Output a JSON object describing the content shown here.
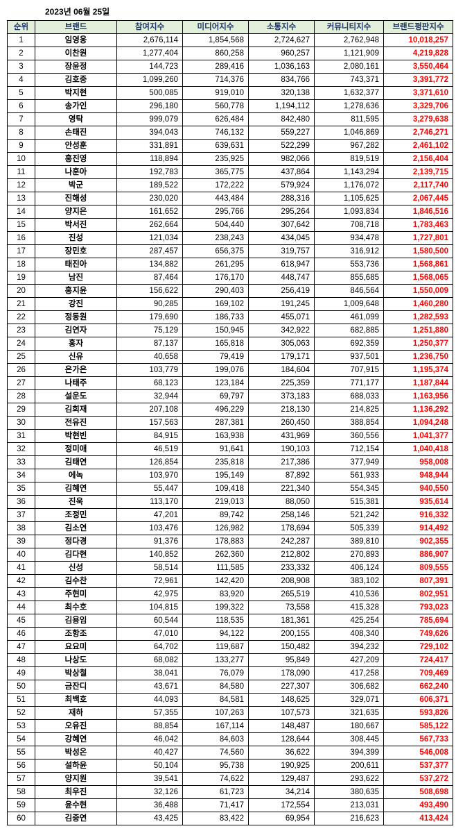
{
  "date": "2023년 06월 25일",
  "headers": {
    "rank": "순위",
    "brand": "브랜드",
    "participation": "참여지수",
    "media": "미디어지수",
    "comm": "소통지수",
    "community": "커뮤니티지수",
    "reputation": "브랜드평판지수"
  },
  "rows": [
    {
      "rank": "1",
      "brand": "임영웅",
      "p": "2,676,114",
      "m": "1,854,568",
      "s": "2,724,627",
      "c": "2,762,948",
      "r": "10,018,257"
    },
    {
      "rank": "2",
      "brand": "이찬원",
      "p": "1,277,404",
      "m": "860,258",
      "s": "960,257",
      "c": "1,121,909",
      "r": "4,219,828"
    },
    {
      "rank": "3",
      "brand": "장윤정",
      "p": "144,723",
      "m": "289,416",
      "s": "1,036,163",
      "c": "2,080,161",
      "r": "3,550,464"
    },
    {
      "rank": "4",
      "brand": "김호중",
      "p": "1,099,260",
      "m": "714,376",
      "s": "834,766",
      "c": "743,371",
      "r": "3,391,772"
    },
    {
      "rank": "5",
      "brand": "박지현",
      "p": "500,085",
      "m": "919,010",
      "s": "320,138",
      "c": "1,632,377",
      "r": "3,371,610"
    },
    {
      "rank": "6",
      "brand": "송가인",
      "p": "296,180",
      "m": "560,778",
      "s": "1,194,112",
      "c": "1,278,636",
      "r": "3,329,706"
    },
    {
      "rank": "7",
      "brand": "영탁",
      "p": "999,079",
      "m": "626,484",
      "s": "842,480",
      "c": "811,595",
      "r": "3,279,638"
    },
    {
      "rank": "8",
      "brand": "손태진",
      "p": "394,043",
      "m": "746,132",
      "s": "559,227",
      "c": "1,046,869",
      "r": "2,746,271"
    },
    {
      "rank": "9",
      "brand": "안성훈",
      "p": "331,891",
      "m": "639,631",
      "s": "522,299",
      "c": "967,282",
      "r": "2,461,102"
    },
    {
      "rank": "10",
      "brand": "홍진영",
      "p": "118,894",
      "m": "235,925",
      "s": "982,066",
      "c": "819,519",
      "r": "2,156,404"
    },
    {
      "rank": "11",
      "brand": "나훈아",
      "p": "192,783",
      "m": "365,775",
      "s": "437,864",
      "c": "1,143,294",
      "r": "2,139,715"
    },
    {
      "rank": "12",
      "brand": "박군",
      "p": "189,522",
      "m": "172,222",
      "s": "579,924",
      "c": "1,176,072",
      "r": "2,117,740"
    },
    {
      "rank": "13",
      "brand": "진해성",
      "p": "230,020",
      "m": "443,484",
      "s": "288,316",
      "c": "1,105,625",
      "r": "2,067,445"
    },
    {
      "rank": "14",
      "brand": "양지은",
      "p": "161,652",
      "m": "295,766",
      "s": "295,264",
      "c": "1,093,834",
      "r": "1,846,516"
    },
    {
      "rank": "15",
      "brand": "박서진",
      "p": "262,664",
      "m": "504,440",
      "s": "307,642",
      "c": "708,718",
      "r": "1,783,463"
    },
    {
      "rank": "16",
      "brand": "진성",
      "p": "121,034",
      "m": "238,243",
      "s": "434,045",
      "c": "934,478",
      "r": "1,727,801"
    },
    {
      "rank": "17",
      "brand": "장민호",
      "p": "287,457",
      "m": "656,375",
      "s": "319,757",
      "c": "316,912",
      "r": "1,580,500"
    },
    {
      "rank": "18",
      "brand": "태진아",
      "p": "134,882",
      "m": "261,295",
      "s": "618,947",
      "c": "553,736",
      "r": "1,568,861"
    },
    {
      "rank": "19",
      "brand": "남진",
      "p": "87,464",
      "m": "176,170",
      "s": "448,747",
      "c": "855,685",
      "r": "1,568,065"
    },
    {
      "rank": "20",
      "brand": "홍지윤",
      "p": "156,622",
      "m": "290,403",
      "s": "256,419",
      "c": "846,564",
      "r": "1,550,009"
    },
    {
      "rank": "21",
      "brand": "강진",
      "p": "90,285",
      "m": "169,102",
      "s": "191,245",
      "c": "1,009,648",
      "r": "1,460,280"
    },
    {
      "rank": "22",
      "brand": "정동원",
      "p": "179,690",
      "m": "186,733",
      "s": "455,071",
      "c": "461,099",
      "r": "1,282,593"
    },
    {
      "rank": "23",
      "brand": "김연자",
      "p": "75,129",
      "m": "150,945",
      "s": "342,922",
      "c": "682,885",
      "r": "1,251,880"
    },
    {
      "rank": "24",
      "brand": "홍자",
      "p": "87,137",
      "m": "165,818",
      "s": "305,063",
      "c": "692,359",
      "r": "1,250,377"
    },
    {
      "rank": "25",
      "brand": "신유",
      "p": "40,658",
      "m": "79,419",
      "s": "179,171",
      "c": "937,501",
      "r": "1,236,750"
    },
    {
      "rank": "26",
      "brand": "은가은",
      "p": "103,779",
      "m": "199,076",
      "s": "184,604",
      "c": "707,915",
      "r": "1,195,374"
    },
    {
      "rank": "27",
      "brand": "나태주",
      "p": "68,123",
      "m": "123,184",
      "s": "225,359",
      "c": "771,177",
      "r": "1,187,844"
    },
    {
      "rank": "28",
      "brand": "설운도",
      "p": "32,944",
      "m": "69,797",
      "s": "373,183",
      "c": "688,033",
      "r": "1,163,956"
    },
    {
      "rank": "29",
      "brand": "김희재",
      "p": "207,108",
      "m": "496,229",
      "s": "218,130",
      "c": "214,825",
      "r": "1,136,292"
    },
    {
      "rank": "30",
      "brand": "전유진",
      "p": "157,563",
      "m": "287,381",
      "s": "260,450",
      "c": "388,854",
      "r": "1,094,248"
    },
    {
      "rank": "31",
      "brand": "박현빈",
      "p": "84,915",
      "m": "163,938",
      "s": "431,969",
      "c": "360,556",
      "r": "1,041,377"
    },
    {
      "rank": "32",
      "brand": "정미애",
      "p": "46,519",
      "m": "91,641",
      "s": "190,103",
      "c": "712,154",
      "r": "1,040,418"
    },
    {
      "rank": "33",
      "brand": "김태연",
      "p": "126,854",
      "m": "235,818",
      "s": "217,386",
      "c": "377,949",
      "r": "958,008"
    },
    {
      "rank": "34",
      "brand": "에녹",
      "p": "103,970",
      "m": "195,149",
      "s": "87,892",
      "c": "561,933",
      "r": "948,944"
    },
    {
      "rank": "35",
      "brand": "김혜연",
      "p": "55,447",
      "m": "109,418",
      "s": "221,340",
      "c": "554,345",
      "r": "940,550"
    },
    {
      "rank": "36",
      "brand": "진욱",
      "p": "113,170",
      "m": "219,013",
      "s": "88,050",
      "c": "515,381",
      "r": "935,614"
    },
    {
      "rank": "37",
      "brand": "조정민",
      "p": "47,201",
      "m": "89,742",
      "s": "258,146",
      "c": "521,242",
      "r": "916,332"
    },
    {
      "rank": "38",
      "brand": "김소연",
      "p": "103,476",
      "m": "126,982",
      "s": "178,694",
      "c": "505,339",
      "r": "914,492"
    },
    {
      "rank": "39",
      "brand": "정다경",
      "p": "91,376",
      "m": "178,883",
      "s": "242,287",
      "c": "389,810",
      "r": "902,355"
    },
    {
      "rank": "40",
      "brand": "김다현",
      "p": "140,852",
      "m": "262,360",
      "s": "212,802",
      "c": "270,893",
      "r": "886,907"
    },
    {
      "rank": "41",
      "brand": "신성",
      "p": "58,514",
      "m": "111,585",
      "s": "233,332",
      "c": "406,124",
      "r": "809,555"
    },
    {
      "rank": "42",
      "brand": "김수찬",
      "p": "72,961",
      "m": "142,420",
      "s": "208,908",
      "c": "383,102",
      "r": "807,391"
    },
    {
      "rank": "43",
      "brand": "주현미",
      "p": "42,975",
      "m": "83,920",
      "s": "265,519",
      "c": "410,536",
      "r": "802,951"
    },
    {
      "rank": "44",
      "brand": "최수호",
      "p": "104,815",
      "m": "199,322",
      "s": "73,558",
      "c": "415,328",
      "r": "793,023"
    },
    {
      "rank": "45",
      "brand": "김용임",
      "p": "60,544",
      "m": "118,535",
      "s": "181,361",
      "c": "425,254",
      "r": "785,694"
    },
    {
      "rank": "46",
      "brand": "조항조",
      "p": "47,010",
      "m": "94,122",
      "s": "200,155",
      "c": "408,340",
      "r": "749,626"
    },
    {
      "rank": "47",
      "brand": "요요미",
      "p": "64,702",
      "m": "119,687",
      "s": "150,482",
      "c": "394,232",
      "r": "729,102"
    },
    {
      "rank": "48",
      "brand": "나상도",
      "p": "68,082",
      "m": "133,277",
      "s": "95,849",
      "c": "427,209",
      "r": "724,417"
    },
    {
      "rank": "49",
      "brand": "박상철",
      "p": "38,041",
      "m": "76,079",
      "s": "178,090",
      "c": "417,258",
      "r": "709,469"
    },
    {
      "rank": "50",
      "brand": "금잔디",
      "p": "43,671",
      "m": "84,580",
      "s": "227,307",
      "c": "306,682",
      "r": "662,240"
    },
    {
      "rank": "51",
      "brand": "최백호",
      "p": "44,093",
      "m": "84,581",
      "s": "148,625",
      "c": "329,071",
      "r": "606,371"
    },
    {
      "rank": "52",
      "brand": "재하",
      "p": "57,355",
      "m": "107,263",
      "s": "107,573",
      "c": "321,635",
      "r": "593,826"
    },
    {
      "rank": "53",
      "brand": "오유진",
      "p": "88,854",
      "m": "167,114",
      "s": "148,487",
      "c": "180,667",
      "r": "585,122"
    },
    {
      "rank": "54",
      "brand": "강혜연",
      "p": "46,042",
      "m": "84,603",
      "s": "128,644",
      "c": "308,445",
      "r": "567,733"
    },
    {
      "rank": "55",
      "brand": "박성온",
      "p": "40,427",
      "m": "74,560",
      "s": "36,622",
      "c": "394,399",
      "r": "546,008"
    },
    {
      "rank": "56",
      "brand": "설하윤",
      "p": "50,104",
      "m": "95,738",
      "s": "190,925",
      "c": "200,611",
      "r": "537,377"
    },
    {
      "rank": "57",
      "brand": "양지원",
      "p": "39,541",
      "m": "74,622",
      "s": "129,487",
      "c": "293,622",
      "r": "537,272"
    },
    {
      "rank": "58",
      "brand": "최우진",
      "p": "32,126",
      "m": "61,723",
      "s": "34,214",
      "c": "380,635",
      "r": "508,698"
    },
    {
      "rank": "59",
      "brand": "윤수현",
      "p": "36,488",
      "m": "71,417",
      "s": "172,554",
      "c": "213,031",
      "r": "493,490"
    },
    {
      "rank": "60",
      "brand": "김중연",
      "p": "43,425",
      "m": "83,422",
      "s": "69,954",
      "c": "216,623",
      "r": "413,424"
    }
  ]
}
